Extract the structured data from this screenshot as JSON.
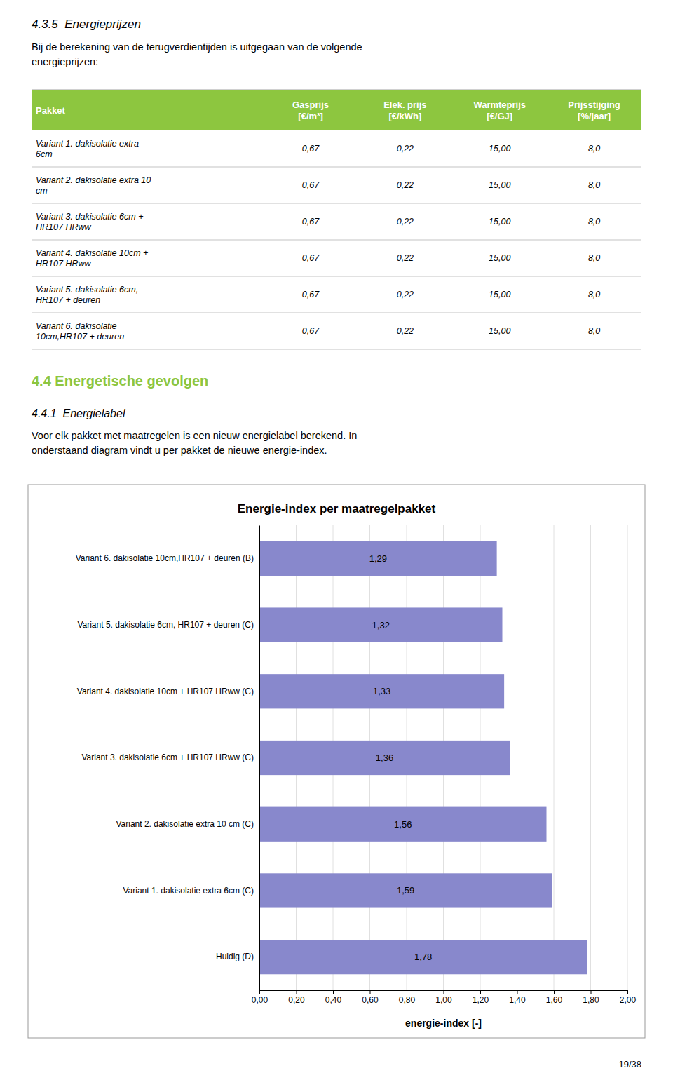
{
  "page_title": "4.3.5  Energieprijzen",
  "intro_text": "Bij de berekening van de terugverdientijden is uitgegaan van de volgende\nenergieprijzen:",
  "table": {
    "header": [
      "Pakket",
      "Gasprijs\n[€/m³]",
      "Elek. prijs\n[€/kWh]",
      "Warmteprijs\n[€/GJ]",
      "Prijsstijging\n[%/jaar]"
    ],
    "rows": [
      [
        "Variant 1. dakisolatie extra\n6cm",
        "0,67",
        "0,22",
        "15,00",
        "8,0"
      ],
      [
        "Variant 2. dakisolatie extra 10\ncm",
        "0,67",
        "0,22",
        "15,00",
        "8,0"
      ],
      [
        "Variant 3. dakisolatie 6cm +\nHR107 HRww",
        "0,67",
        "0,22",
        "15,00",
        "8,0"
      ],
      [
        "Variant 4. dakisolatie 10cm +\nHR107 HRww",
        "0,67",
        "0,22",
        "15,00",
        "8,0"
      ],
      [
        "Variant 5. dakisolatie 6cm,\nHR107 + deuren",
        "0,67",
        "0,22",
        "15,00",
        "8,0"
      ],
      [
        "Variant 6. dakisolatie\n10cm,HR107 + deuren",
        "0,67",
        "0,22",
        "15,00",
        "8,0"
      ]
    ],
    "header_color": "#8dc63f"
  },
  "section_title": "4.4 Energetische gevolgen",
  "section_title_color": "#8dc63f",
  "subsection_title": "4.4.1  Energielabel",
  "paragraph": "Voor elk pakket met maatregelen is een nieuw energielabel berekend. In\nonderstaand diagram vindt u per pakket de nieuwe energie-index.",
  "page_number": "19/38",
  "chart_data": {
    "type": "bar",
    "orientation": "horizontal",
    "title": "Energie-index per maatregelpakket",
    "categories": [
      "Variant 6. dakisolatie 10cm,HR107 + deuren (B)",
      "Variant 5. dakisolatie 6cm, HR107 + deuren (C)",
      "Variant 4. dakisolatie 10cm + HR107 HRww (C)",
      "Variant 3. dakisolatie 6cm + HR107 HRww (C)",
      "Variant 2. dakisolatie extra 10 cm (C)",
      "Variant 1. dakisolatie extra 6cm (C)",
      "Huidig (D)"
    ],
    "values": [
      1.29,
      1.32,
      1.33,
      1.36,
      1.56,
      1.59,
      1.78
    ],
    "value_labels": [
      "1,29",
      "1,32",
      "1,33",
      "1,36",
      "1,56",
      "1,59",
      "1,78"
    ],
    "data_labels": true,
    "color": "#8888cc",
    "xlabel": "energie-index [-]",
    "xlim": [
      0.0,
      2.0
    ],
    "xticks": [
      {
        "value": 0.0,
        "label": "0,00"
      },
      {
        "value": 0.2,
        "label": "0,20"
      },
      {
        "value": 0.4,
        "label": "0,40"
      },
      {
        "value": 0.6,
        "label": "0,60"
      },
      {
        "value": 0.8,
        "label": "0,80"
      },
      {
        "value": 1.0,
        "label": "1,00"
      },
      {
        "value": 1.2,
        "label": "1,20"
      },
      {
        "value": 1.4,
        "label": "1,40"
      },
      {
        "value": 1.6,
        "label": "1,60"
      },
      {
        "value": 1.8,
        "label": "1,80"
      },
      {
        "value": 2.0,
        "label": "2,00"
      }
    ],
    "grid": true
  }
}
